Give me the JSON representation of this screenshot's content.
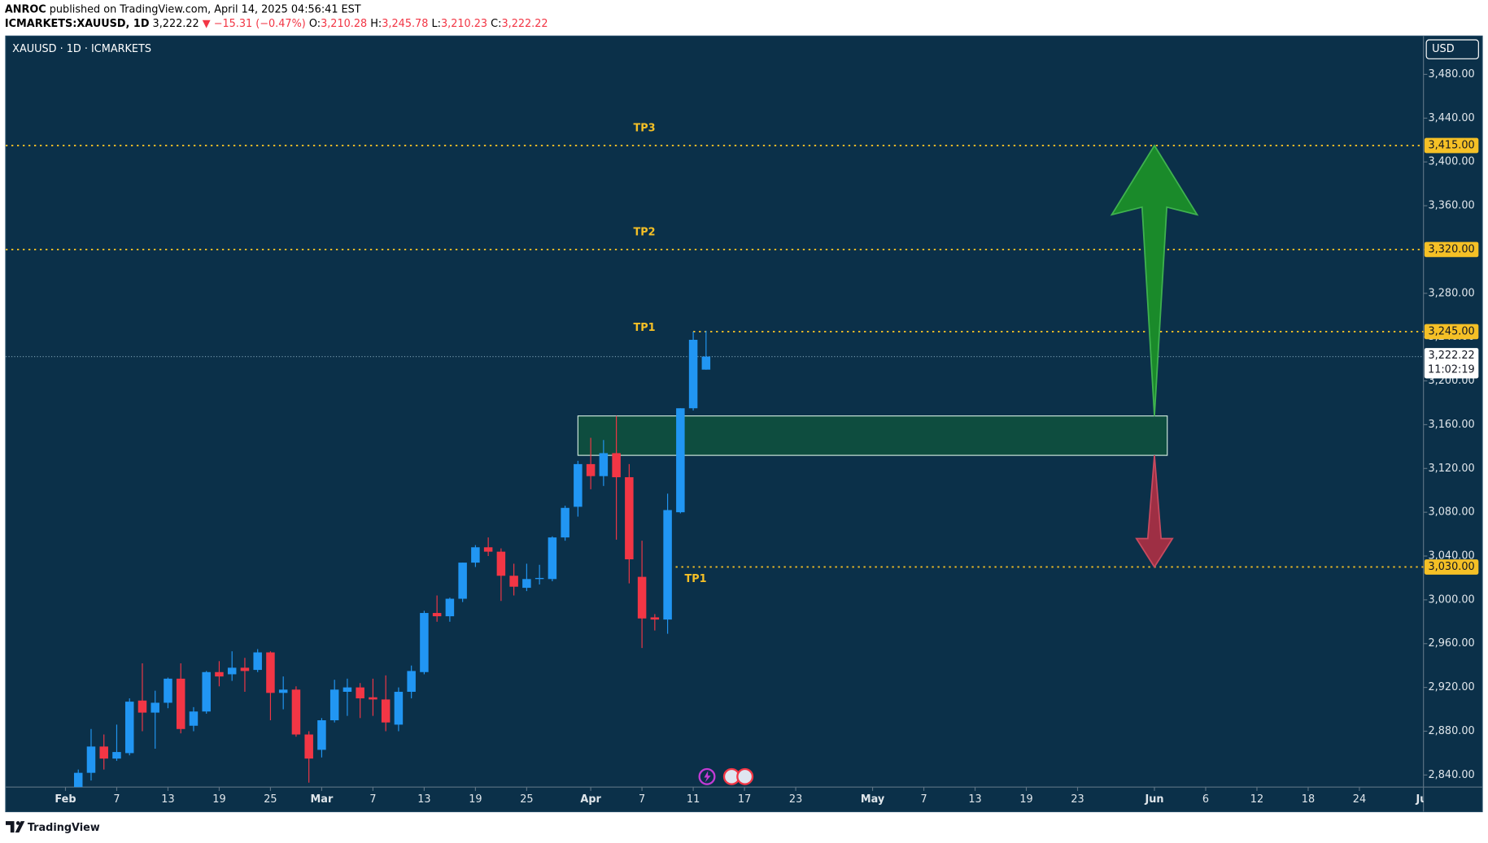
{
  "header": {
    "publisher": "ANROC",
    "published": "published on TradingView.com, April 14, 2025 04:56:41 EST",
    "symbol": "ICMARKETS:XAUUSD, 1D",
    "last": "3,222.22",
    "change": "▼ −15.31 (−0.47%)",
    "o_label": "O:",
    "o": "3,210.28",
    "h_label": "H:",
    "h": "3,245.78",
    "l_label": "L:",
    "l": "3,210.23",
    "c_label": "C:",
    "c": "3,222.22"
  },
  "legend": "XAUUSD · 1D · ICMARKETS",
  "currency": "USD",
  "footer": {
    "brand": "TradingView"
  },
  "chart_data": {
    "type": "candlestick",
    "up_color": "#2196f3",
    "down_color": "#f23645",
    "x": [
      "2025-02-04",
      "2025-02-05",
      "2025-02-06",
      "2025-02-07",
      "2025-02-10",
      "2025-02-11",
      "2025-02-12",
      "2025-02-13",
      "2025-02-14",
      "2025-02-17",
      "2025-02-18",
      "2025-02-19",
      "2025-02-20",
      "2025-02-21",
      "2025-02-24",
      "2025-02-25",
      "2025-02-26",
      "2025-02-27",
      "2025-02-28",
      "2025-03-03",
      "2025-03-04",
      "2025-03-05",
      "2025-03-06",
      "2025-03-07",
      "2025-03-10",
      "2025-03-11",
      "2025-03-12",
      "2025-03-13",
      "2025-03-14",
      "2025-03-17",
      "2025-03-18",
      "2025-03-19",
      "2025-03-20",
      "2025-03-21",
      "2025-03-24",
      "2025-03-25",
      "2025-03-26",
      "2025-03-27",
      "2025-03-28",
      "2025-03-31",
      "2025-04-01",
      "2025-04-02",
      "2025-04-03",
      "2025-04-04",
      "2025-04-07",
      "2025-04-08",
      "2025-04-09",
      "2025-04-10",
      "2025-04-11",
      "2025-04-14"
    ],
    "open": [
      2815,
      2842,
      2866,
      2855,
      2860,
      2908,
      2897,
      2906,
      2928,
      2885,
      2898,
      2934,
      2932,
      2938,
      2936,
      2952,
      2915,
      2918,
      2877,
      2863,
      2890,
      2916,
      2920,
      2911,
      2909,
      2886,
      2916,
      2934,
      2988,
      2985,
      3001,
      3034,
      3048,
      3044,
      3022,
      3011,
      3019,
      3019,
      3057,
      3085,
      3124,
      3113,
      3134,
      3112,
      3021,
      2984,
      2982,
      3080,
      3175,
      3210.28
    ],
    "high": [
      2845,
      2882,
      2877,
      2886,
      2910,
      2942,
      2917,
      2929,
      2942,
      2902,
      2935,
      2944,
      2953,
      2947,
      2955,
      2953,
      2930,
      2921,
      2880,
      2892,
      2927,
      2928,
      2924,
      2928,
      2931,
      2920,
      2940,
      2990,
      3004,
      3002,
      3034,
      3050,
      3057,
      3047,
      3033,
      3033,
      3032,
      3058,
      3086,
      3127,
      3148,
      3146,
      3168,
      3124,
      3054,
      2987,
      3097,
      3175,
      3245,
      3245.78
    ],
    "low": [
      2810,
      2835,
      2845,
      2853,
      2858,
      2880,
      2864,
      2901,
      2878,
      2880,
      2896,
      2921,
      2926,
      2916,
      2934,
      2890,
      2900,
      2875,
      2833,
      2856,
      2888,
      2894,
      2892,
      2894,
      2880,
      2880,
      2910,
      2932,
      2980,
      2980,
      2998,
      3030,
      3040,
      2999,
      3004,
      3008,
      3014,
      3017,
      3054,
      3076,
      3101,
      3104,
      3055,
      3015,
      2956,
      2972,
      2969,
      3079,
      3173,
      3210.23
    ],
    "close": [
      2842,
      2866,
      2855,
      2861,
      2907,
      2897,
      2906,
      2928,
      2882,
      2898,
      2934,
      2930,
      2938,
      2935,
      2952,
      2915,
      2918,
      2877,
      2855,
      2890,
      2918,
      2920,
      2910,
      2909,
      2888,
      2916,
      2935,
      2988,
      2985,
      3001,
      3034,
      3048,
      3044,
      3022,
      3012,
      3019,
      3020,
      3057,
      3084,
      3124,
      3113,
      3134,
      3112,
      3037,
      2983,
      2982,
      3082,
      3175,
      3237.53,
      3222.22
    ],
    "ylim": [
      2829,
      3515
    ],
    "yticks": [
      {
        "value": 2840,
        "label": "2,840.00"
      },
      {
        "value": 2880,
        "label": "2,880.00"
      },
      {
        "value": 2920,
        "label": "2,920.00"
      },
      {
        "value": 2960,
        "label": "2,960.00"
      },
      {
        "value": 3000,
        "label": "3,000.00"
      },
      {
        "value": 3040,
        "label": "3,040.00"
      },
      {
        "value": 3080,
        "label": "3,080.00"
      },
      {
        "value": 3120,
        "label": "3,120.00"
      },
      {
        "value": 3160,
        "label": "3,160.00"
      },
      {
        "value": 3200,
        "label": "3,200.00"
      },
      {
        "value": 3240,
        "label": "3,240.00"
      },
      {
        "value": 3280,
        "label": "3,280.00"
      },
      {
        "value": 3320,
        "label": "3,320.00"
      },
      {
        "value": 3360,
        "label": "3,360.00"
      },
      {
        "value": 3400,
        "label": "3,400.00"
      },
      {
        "value": 3440,
        "label": "3,440.00"
      },
      {
        "value": 3480,
        "label": "3,480.00"
      }
    ],
    "xticks": [
      {
        "value": "2025-02-03",
        "label": "Feb"
      },
      {
        "value": "2025-02-07",
        "label": "7"
      },
      {
        "value": "2025-02-13",
        "label": "13"
      },
      {
        "value": "2025-02-19",
        "label": "19"
      },
      {
        "value": "2025-02-25",
        "label": "25"
      },
      {
        "value": "2025-03-03",
        "label": "Mar"
      },
      {
        "value": "2025-03-07",
        "label": "7"
      },
      {
        "value": "2025-03-13",
        "label": "13"
      },
      {
        "value": "2025-03-19",
        "label": "19"
      },
      {
        "value": "2025-03-25",
        "label": "25"
      },
      {
        "value": "2025-04-01",
        "label": "Apr"
      },
      {
        "value": "2025-04-07",
        "label": "7"
      },
      {
        "value": "2025-04-11",
        "label": "11"
      },
      {
        "value": "2025-04-17",
        "label": "17"
      },
      {
        "value": "2025-04-23",
        "label": "23"
      },
      {
        "value": "2025-05-01",
        "label": "May"
      },
      {
        "value": "2025-05-07",
        "label": "7"
      },
      {
        "value": "2025-05-13",
        "label": "13"
      },
      {
        "value": "2025-05-19",
        "label": "19"
      },
      {
        "value": "2025-05-23",
        "label": "23"
      },
      {
        "value": "2025-06-02",
        "label": "Jun"
      },
      {
        "value": "2025-06-06",
        "label": "6"
      },
      {
        "value": "2025-06-12",
        "label": "12"
      },
      {
        "value": "2025-06-18",
        "label": "18"
      },
      {
        "value": "2025-06-24",
        "label": "24"
      },
      {
        "value": "2025-07-01",
        "label": "Jul"
      }
    ],
    "levels": [
      {
        "value": 3415,
        "label": "3,415.00",
        "name": "TP3"
      },
      {
        "value": 3320,
        "label": "3,320.00",
        "name": "TP2"
      },
      {
        "value": 3245,
        "label": "3,245.00",
        "name": "TP1"
      },
      {
        "value": 3030,
        "label": "3,030.00",
        "name": "TP1"
      }
    ],
    "level_color": "#f5c026",
    "current_price": {
      "value": 3222.22,
      "label": "3,222.22",
      "countdown": "11:02:19"
    },
    "zone": {
      "top": 3168,
      "bottom": 3132,
      "from": "2025-03-31",
      "to": "2025-06-03",
      "color": "#0e4d3f"
    },
    "arrow_date": "2025-06-02",
    "arrow_up_color": "#1a8a2a",
    "arrow_down_color": "#9e2f44"
  }
}
